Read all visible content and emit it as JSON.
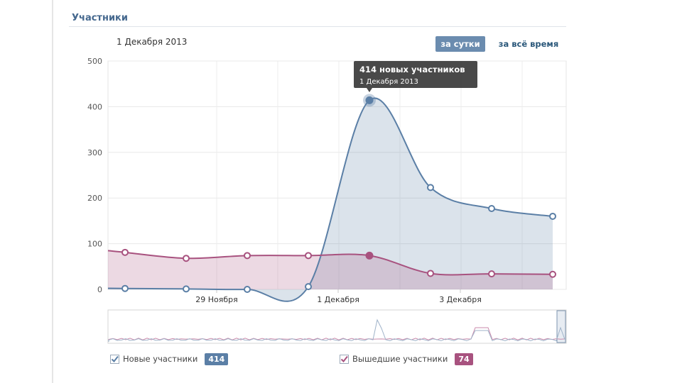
{
  "section": {
    "title": "Участники"
  },
  "header": {
    "date": "1 Декабря 2013",
    "btn_day": "за сутки",
    "btn_all": "за всё время"
  },
  "chart_data": {
    "type": "area",
    "title": "",
    "xlabel": "",
    "ylabel": "",
    "ylim": [
      0,
      500
    ],
    "y_ticks": [
      "0",
      "100",
      "200",
      "300",
      "400",
      "500"
    ],
    "x_ticks": [
      "29 Ноября",
      "1 Декабря",
      "3 Декабря"
    ],
    "x": [
      "27 Ноября",
      "28 Ноября",
      "29 Ноября",
      "30 Ноября",
      "1 Декабря",
      "2 Декабря",
      "3 Декабря",
      "4 Декабря"
    ],
    "grid": true,
    "series": [
      {
        "name": "Новые участники",
        "color": "#5b7fa6",
        "values": [
          2,
          1,
          0,
          6,
          414,
          223,
          177,
          160
        ]
      },
      {
        "name": "Вышедшие участники",
        "color": "#a8527f",
        "values": [
          81,
          68,
          74,
          74,
          74,
          35,
          34,
          33
        ]
      }
    ],
    "tooltip": {
      "title": "414 новых участников",
      "subtitle": "1 Декабря 2013"
    }
  },
  "legend": {
    "new_label": "Новые участники",
    "new_count": "414",
    "new_color": "#5b7fa6",
    "left_label": "Вышедшие участники",
    "left_count": "74",
    "left_color": "#a8527f"
  }
}
